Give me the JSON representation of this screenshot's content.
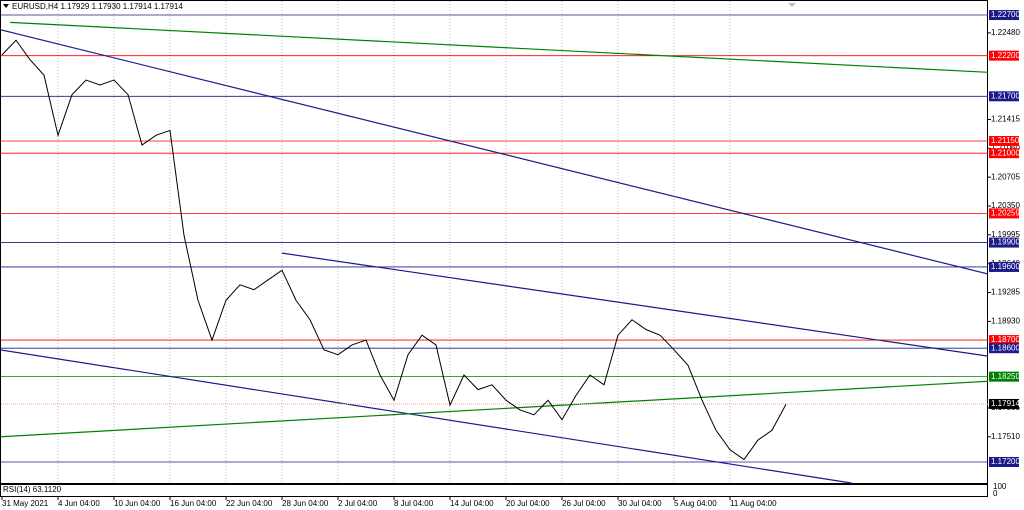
{
  "chart_data": {
    "type": "line",
    "title": "EURUSD,H4  1.17929 1.17930 1.17914 1.17914",
    "categories": [
      "31 May 2021",
      null,
      null,
      null,
      "4 Jun 04:00",
      null,
      null,
      null,
      "10 Jun 04:00",
      null,
      null,
      null,
      "16 Jun 04:00",
      null,
      null,
      null,
      "22 Jun 04:00",
      null,
      null,
      null,
      "28 Jun 04:00",
      null,
      null,
      null,
      "2 Jul 04:00",
      null,
      null,
      null,
      "8 Jul 04:00",
      null,
      null,
      null,
      "14 Jul 04:00",
      null,
      null,
      null,
      "20 Jul 04:00",
      null,
      null,
      null,
      "26 Jul 04:00",
      null,
      null,
      null,
      "30 Jul 04:00",
      null,
      null,
      null,
      "5 Aug 04:00",
      null,
      null,
      null,
      "11 Aug 04:00",
      null,
      null,
      null,
      null
    ],
    "series": [
      {
        "name": "EURUSD",
        "color": "#000000",
        "values": [
          1.2221,
          1.2239,
          1.2215,
          1.2196,
          1.2122,
          1.2172,
          1.219,
          1.2184,
          1.219,
          1.2172,
          1.211,
          1.2122,
          1.2128,
          1.1999,
          1.1919,
          1.187,
          1.1919,
          1.1938,
          1.1932,
          1.1944,
          1.1956,
          1.1919,
          1.1895,
          1.1858,
          1.1852,
          1.1864,
          1.187,
          1.1827,
          1.1796,
          1.1852,
          1.1876,
          1.1864,
          1.179,
          1.1827,
          1.1809,
          1.1815,
          1.1796,
          1.1784,
          1.1778,
          1.1796,
          1.1772,
          1.1802,
          1.1827,
          1.1815,
          1.1876,
          1.1895,
          1.1883,
          1.1876,
          1.1858,
          1.1839,
          1.1796,
          1.1759,
          1.1735,
          1.1723,
          1.1747,
          1.1759,
          1.1791
        ]
      }
    ],
    "ylim": [
      1.16929,
      1.22885
    ],
    "yticks": [
      {
        "value": 1.2248,
        "label": "1.22480"
      },
      {
        "value": 1.21415,
        "label": "1.21415"
      },
      {
        "value": 1.2106,
        "label": "1.21060"
      },
      {
        "value": 1.20705,
        "label": "1.20705"
      },
      {
        "value": 1.2035,
        "label": "1.20350"
      },
      {
        "value": 1.19995,
        "label": "1.19995"
      },
      {
        "value": 1.1964,
        "label": "1.19640"
      },
      {
        "value": 1.19285,
        "label": "1.19285"
      },
      {
        "value": 1.1893,
        "label": "1.18930"
      },
      {
        "value": 1.17865,
        "label": "1.17865"
      },
      {
        "value": 1.1751,
        "label": "1.17510"
      }
    ],
    "grid": true,
    "levels": [
      {
        "value": 1.227,
        "label": "1.22700",
        "color": "#1a1a8c"
      },
      {
        "value": 1.222,
        "label": "1.22200",
        "color": "#ff0000"
      },
      {
        "value": 1.217,
        "label": "1.21700",
        "color": "#1a1a8c"
      },
      {
        "value": 1.2115,
        "label": "1.21150",
        "color": "#ff0000"
      },
      {
        "value": 1.21,
        "label": "1.21000",
        "color": "#ff0000"
      },
      {
        "value": 1.20259,
        "label": "1.20259",
        "color": "#ff0000"
      },
      {
        "value": 1.199,
        "label": "1.19900",
        "color": "#1a1a8c"
      },
      {
        "value": 1.196,
        "label": "1.19600",
        "color": "#1a1a8c"
      },
      {
        "value": 1.187,
        "label": "1.18700",
        "color": "#ff0000"
      },
      {
        "value": 1.186,
        "label": "1.18600",
        "color": "#1a1a8c"
      },
      {
        "value": 1.1825,
        "label": "1.18250",
        "color": "#008000"
      },
      {
        "value": 1.172,
        "label": "1.17200",
        "color": "#1a1a8c"
      }
    ],
    "current_price": {
      "value": 1.17914,
      "label": "1.17914",
      "color": "#000000"
    },
    "trendlines": [
      {
        "x": [
          0.57,
          72.14
        ],
        "y": [
          1.2261,
          1.2198
        ],
        "color": "#008000"
      },
      {
        "x": [
          -0.14,
          72.14
        ],
        "y": [
          1.2252,
          1.1944
        ],
        "color": "#1a1a8c"
      },
      {
        "x": [
          20,
          72.14
        ],
        "y": [
          1.1977,
          1.1846
        ],
        "color": "#1a1a8c"
      },
      {
        "x": [
          -0.14,
          60.71
        ],
        "y": [
          1.1858,
          1.1694
        ],
        "color": "#1a1a8c"
      },
      {
        "x": [
          -0.14,
          72.14
        ],
        "y": [
          1.1751,
          1.1821
        ],
        "color": "#008000"
      }
    ],
    "indicator": {
      "label": "RSI(14) 63.1120",
      "scale_top": "100",
      "scale_bottom": "0"
    }
  }
}
